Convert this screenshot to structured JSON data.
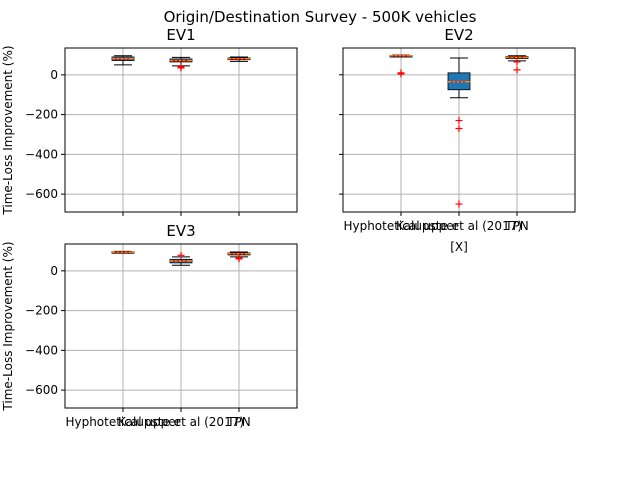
{
  "figure_title": "Origin/Destination Survey - 500K vehicles",
  "colors": {
    "grid": "#b0b0b0",
    "box_fill": "#1f77b4",
    "median": "#1f77b4",
    "outlier": "#ff0000",
    "mean_marker": "#ff0000"
  },
  "chart_data": [
    {
      "type": "box",
      "title": "EV1",
      "categories": [
        "Hyphotetical upper",
        "Kalupste et al (2017)",
        "TPN"
      ],
      "ylabel": "Time-Loss Improvement (%)",
      "xlabel": "",
      "ylim": [
        -690,
        135
      ],
      "yticks": [
        0,
        -200,
        -400,
        -600
      ],
      "grid": true,
      "boxes": [
        {
          "whislo": 50,
          "q1": 72,
          "med": 82,
          "q3": 90,
          "whishi": 96,
          "mean": 80,
          "fliers": []
        },
        {
          "whislo": 45,
          "q1": 65,
          "med": 72,
          "q3": 80,
          "whishi": 88,
          "mean": 72,
          "fliers": [
            40,
            35
          ]
        },
        {
          "whislo": 68,
          "q1": 76,
          "med": 81,
          "q3": 85,
          "whishi": 90,
          "mean": 80,
          "fliers": []
        }
      ],
      "show_tick_labels": false
    },
    {
      "type": "box",
      "title": "EV2",
      "categories": [
        "Hyphotetical upper",
        "Kalupste et al (2017)",
        "TPN"
      ],
      "ylabel": "",
      "xlabel": "[X]",
      "ylim": [
        -690,
        135
      ],
      "yticks": [
        0,
        -200,
        -400,
        -600
      ],
      "grid": true,
      "boxes": [
        {
          "whislo": 92,
          "q1": 94,
          "med": 96,
          "q3": 97,
          "whishi": 99,
          "mean": 95,
          "fliers": [
            10,
            5
          ]
        },
        {
          "whislo": -115,
          "q1": -75,
          "med": -35,
          "q3": 10,
          "whishi": 85,
          "mean": -35,
          "fliers": [
            -230,
            -270,
            -650
          ]
        },
        {
          "whislo": 70,
          "q1": 82,
          "med": 88,
          "q3": 92,
          "whishi": 96,
          "mean": 86,
          "fliers": [
            65,
            25
          ]
        }
      ],
      "show_tick_labels": true
    },
    {
      "type": "box",
      "title": "EV3",
      "categories": [
        "Hyphotetical upper",
        "Kalupste et al (2017)",
        "TPN"
      ],
      "ylabel": "Time-Loss Improvement (%)",
      "xlabel": "",
      "ylim": [
        -690,
        135
      ],
      "yticks": [
        0,
        -200,
        -400,
        -600
      ],
      "grid": true,
      "boxes": [
        {
          "whislo": 90,
          "q1": 92,
          "med": 94,
          "q3": 96,
          "whishi": 98,
          "mean": 94,
          "fliers": []
        },
        {
          "whislo": 28,
          "q1": 40,
          "med": 50,
          "q3": 58,
          "whishi": 70,
          "mean": 50,
          "fliers": [
            78
          ]
        },
        {
          "whislo": 70,
          "q1": 80,
          "med": 86,
          "q3": 90,
          "whishi": 95,
          "mean": 85,
          "fliers": [
            65,
            60
          ]
        }
      ],
      "show_tick_labels": true
    }
  ]
}
